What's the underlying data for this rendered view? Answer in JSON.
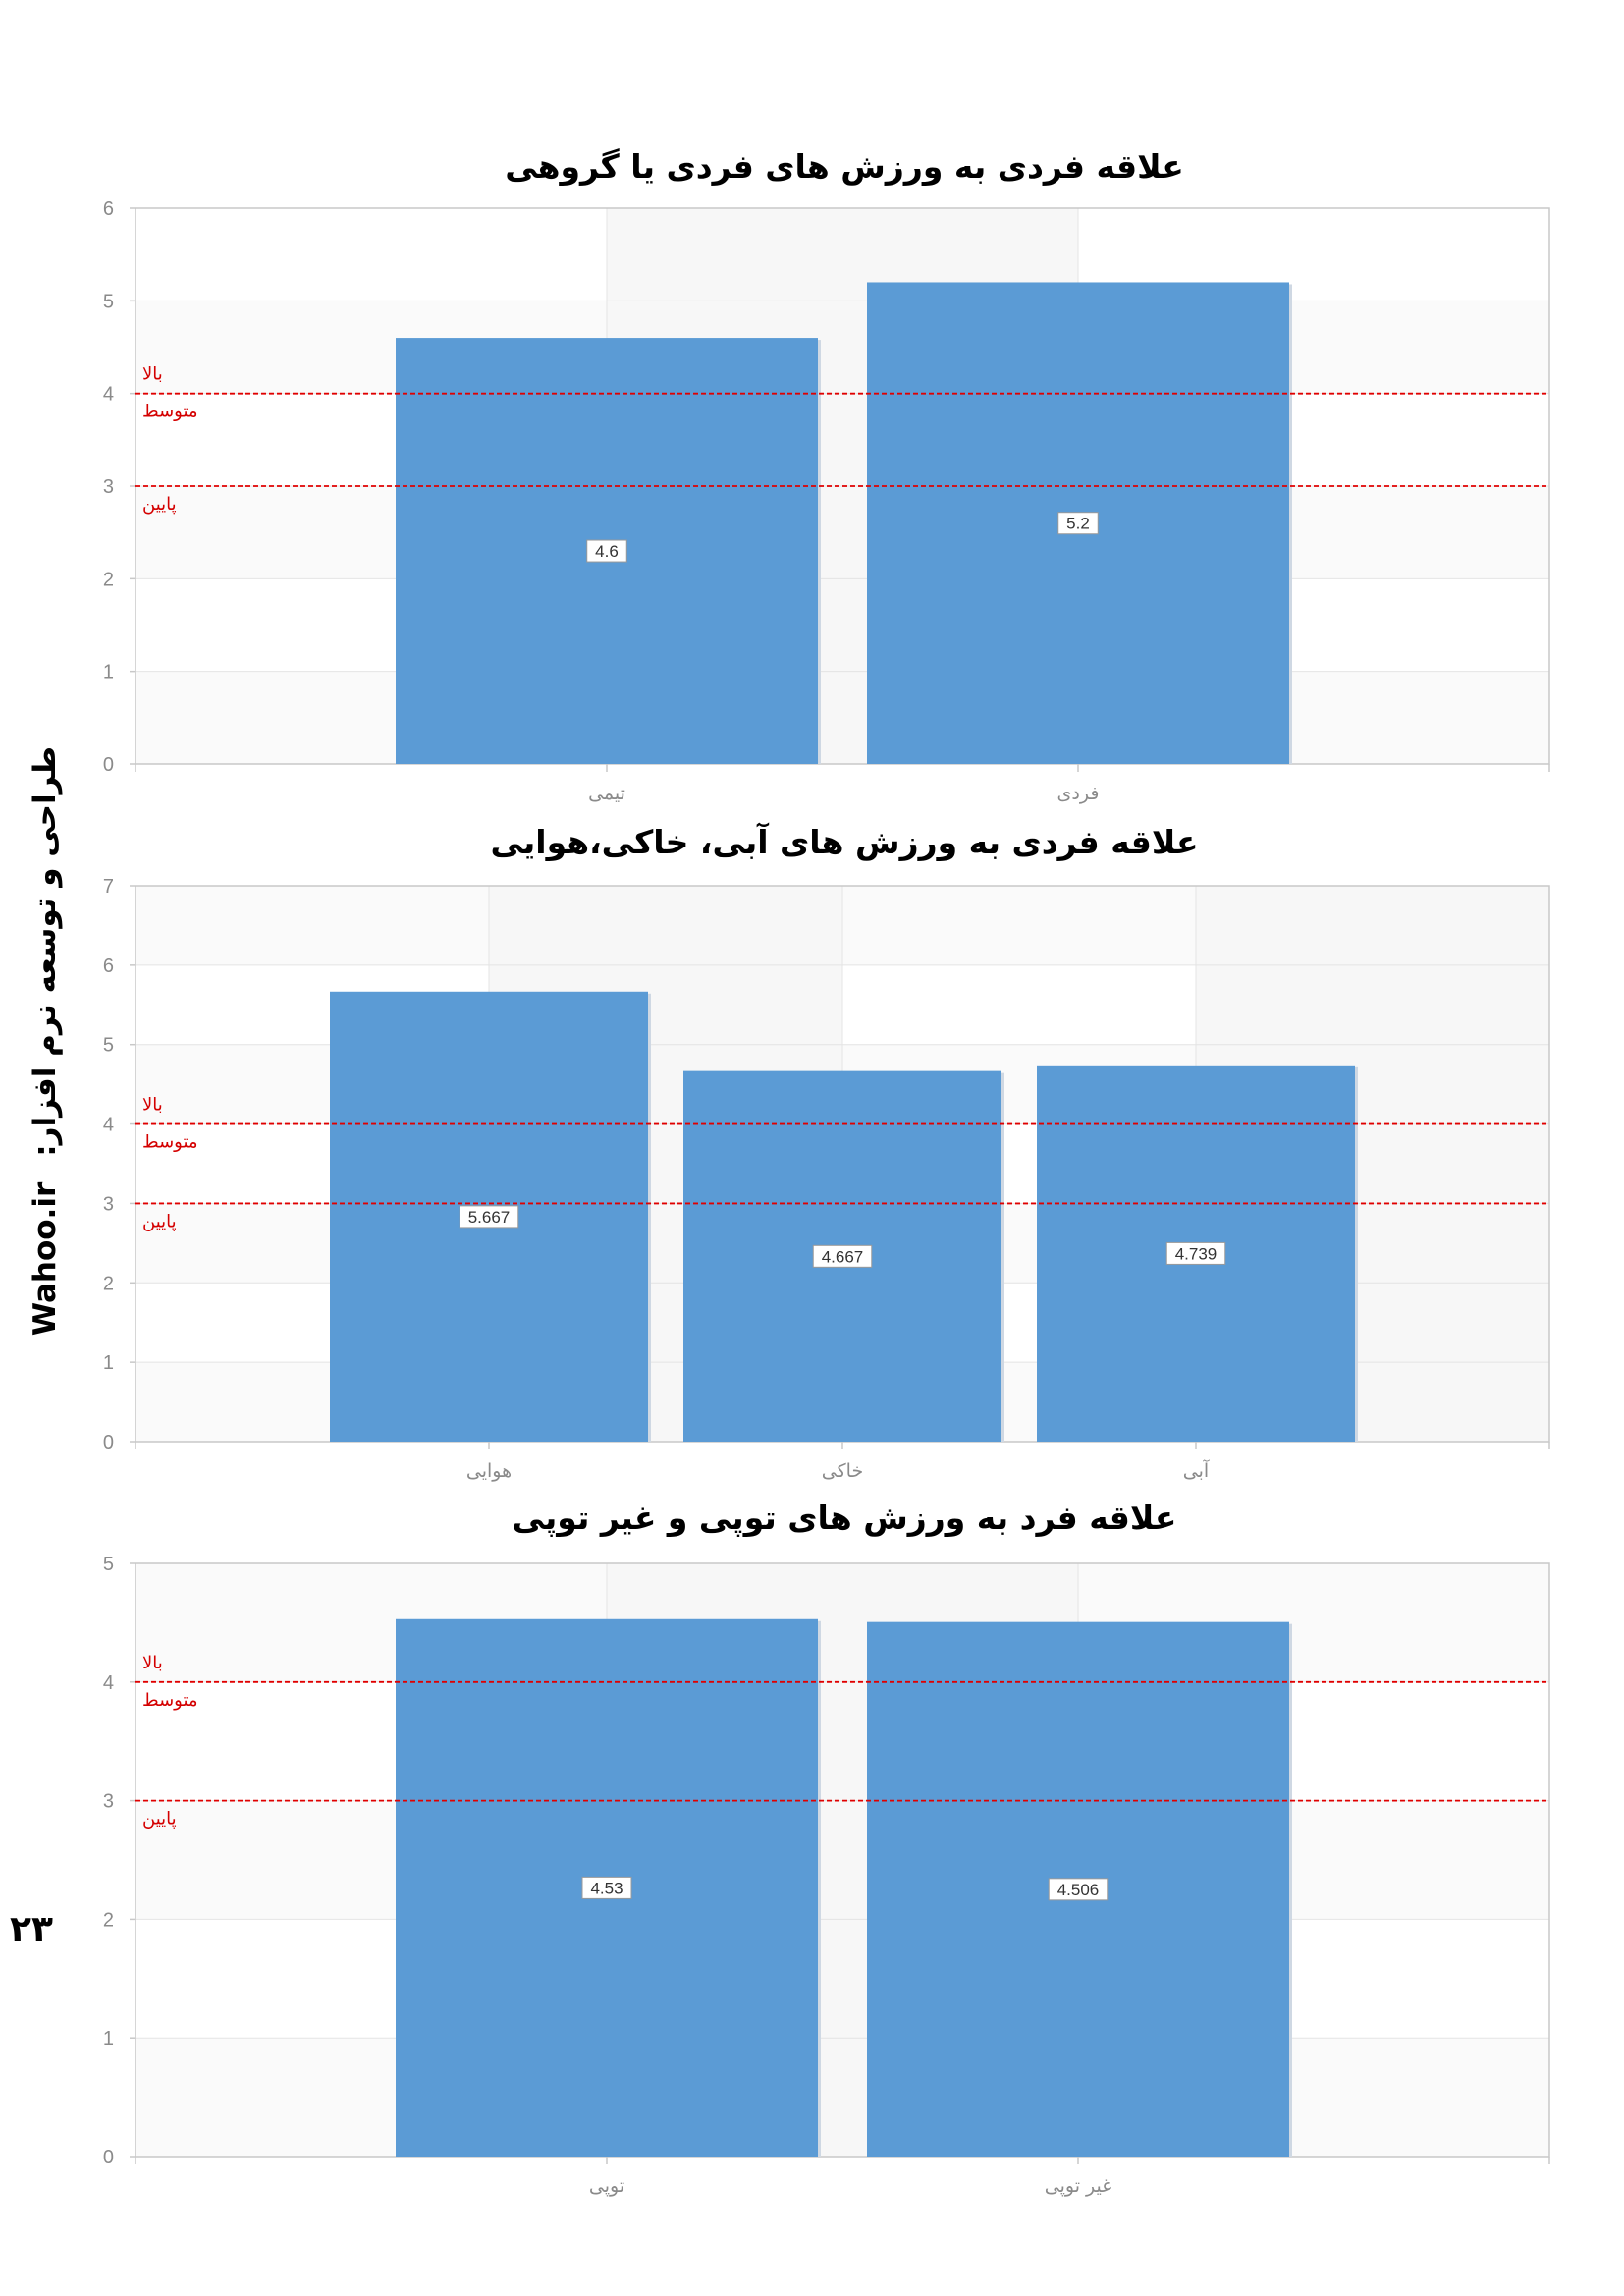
{
  "sidebar": {
    "credit_text": "طراحی و توسعه نرم افزار:",
    "site": "Wahoo.ir"
  },
  "page_number": "۲۳",
  "colors": {
    "bar": "#5b9bd5",
    "reference_line": "#e00000",
    "band_shade": "#f7f7f7",
    "grid": "#e4e4e4",
    "axis": "#c8c8c8"
  },
  "chart_data": [
    {
      "type": "bar",
      "title": "علاقه فردی به ورزش های فردی یا گروهی",
      "categories": [
        "تیمی",
        "فردی"
      ],
      "values": [
        4.6,
        5.2
      ],
      "value_labels": [
        "4.6",
        "5.2"
      ],
      "ylim": [
        0,
        6
      ],
      "yticks": [
        "0",
        "1",
        "2",
        "3",
        "4",
        "5",
        "6"
      ],
      "reference_lines": [
        {
          "value": 4,
          "label_above": "بالا",
          "label_below": "متوسط"
        },
        {
          "value": 3,
          "label_below": "پایین"
        }
      ],
      "grid": true,
      "legend": "none"
    },
    {
      "type": "bar",
      "title": "علاقه فردی به ورزش های آبی، خاکی،هوایی",
      "categories": [
        "هوایی",
        "خاکی",
        "آبی"
      ],
      "values": [
        5.667,
        4.667,
        4.739
      ],
      "value_labels": [
        "5.667",
        "4.667",
        "4.739"
      ],
      "ylim": [
        0,
        7
      ],
      "yticks": [
        "0",
        "1",
        "2",
        "3",
        "4",
        "5",
        "6",
        "7"
      ],
      "reference_lines": [
        {
          "value": 4,
          "label_above": "بالا",
          "label_below": "متوسط"
        },
        {
          "value": 3,
          "label_below": "پایین"
        }
      ],
      "grid": true,
      "legend": "none"
    },
    {
      "type": "bar",
      "title": "علاقه فرد به ورزش های توپی و غیر توپی",
      "categories": [
        "توپی",
        "غیر توپی"
      ],
      "values": [
        4.53,
        4.506
      ],
      "value_labels": [
        "4.53",
        "4.506"
      ],
      "ylim": [
        0,
        5
      ],
      "yticks": [
        "0",
        "1",
        "2",
        "3",
        "4",
        "5"
      ],
      "reference_lines": [
        {
          "value": 4,
          "label_above": "بالا",
          "label_below": "متوسط"
        },
        {
          "value": 3,
          "label_below": "پایین"
        }
      ],
      "grid": true,
      "legend": "none"
    }
  ]
}
